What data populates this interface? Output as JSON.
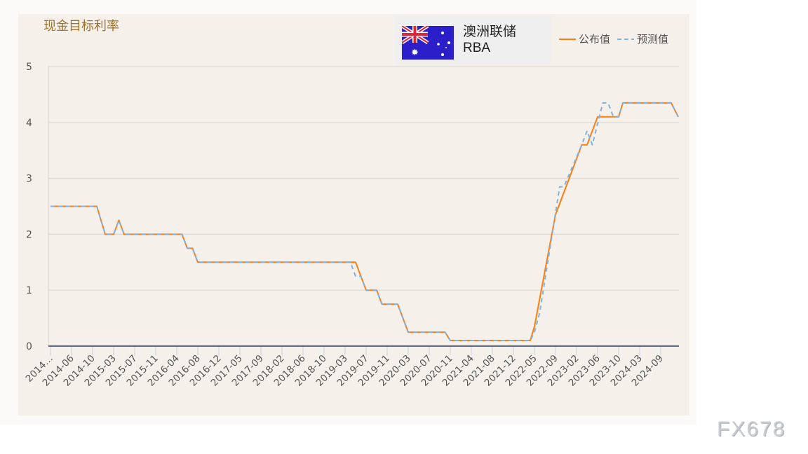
{
  "header": {
    "title": "现金目标利率",
    "bank_name": "澳洲联储",
    "bank_code": "RBA",
    "flag_icon": "australia-flag"
  },
  "watermark": "FX678",
  "colors": {
    "actual": "#ff7f0e",
    "forecast": "#7fb2e5",
    "title": "#a0742a",
    "axis": "#2b3a67"
  },
  "chart_data": {
    "type": "line",
    "title": "现金目标利率",
    "xlabel": "",
    "ylabel": "",
    "ylim": [
      0,
      5
    ],
    "yticks": [
      "0",
      "1",
      "2",
      "3",
      "4",
      "5"
    ],
    "grid": true,
    "legend": "top-right",
    "xticks": [
      "2014-02",
      "2014-06",
      "2014-10",
      "2015-03",
      "2015-07",
      "2015-11",
      "2016-04",
      "2016-08",
      "2016-12",
      "2017-05",
      "2017-09",
      "2018-02",
      "2018-06",
      "2018-10",
      "2019-03",
      "2019-07",
      "2019-11",
      "2020-03",
      "2020-07",
      "2020-11",
      "2021-04",
      "2021-08",
      "2021-12",
      "2022-05",
      "2022-09",
      "2023-02",
      "2023-06",
      "2023-10",
      "2024-03",
      "2024-09"
    ],
    "xtick_labels": [
      "2014…",
      "2014-06",
      "2014-10",
      "2015-03",
      "2015-07",
      "2015-11",
      "2016-04",
      "2016-08",
      "2016-12",
      "2017-05",
      "2017-09",
      "2018-02",
      "2018-06",
      "2018-10",
      "2019-03",
      "2019-07",
      "2019-11",
      "2020-03",
      "2020-07",
      "2020-11",
      "2021-04",
      "2021-08",
      "2021-12",
      "2022-05",
      "2022-09",
      "2023-02",
      "2023-06",
      "2023-10",
      "2024-03",
      "2024-09"
    ],
    "series": [
      {
        "name": "公布值",
        "style": "solid",
        "points": [
          [
            "2014-02",
            2.5
          ],
          [
            "2014-11",
            2.5
          ],
          [
            "2015-01",
            2.0
          ],
          [
            "2015-03",
            2.0
          ],
          [
            "2015-04",
            2.25
          ],
          [
            "2015-05",
            2.0
          ],
          [
            "2016-05",
            2.0
          ],
          [
            "2016-06",
            1.75
          ],
          [
            "2016-07",
            1.75
          ],
          [
            "2016-08",
            1.5
          ],
          [
            "2019-05",
            1.5
          ],
          [
            "2019-07",
            1.0
          ],
          [
            "2019-09",
            1.0
          ],
          [
            "2019-10",
            0.75
          ],
          [
            "2020-01",
            0.75
          ],
          [
            "2020-03",
            0.25
          ],
          [
            "2020-10",
            0.25
          ],
          [
            "2020-11",
            0.1
          ],
          [
            "2022-04",
            0.1
          ],
          [
            "2022-05",
            0.35
          ],
          [
            "2022-09",
            2.35
          ],
          [
            "2023-03",
            3.6
          ],
          [
            "2023-04",
            3.6
          ],
          [
            "2023-06",
            4.1
          ],
          [
            "2023-10",
            4.1
          ],
          [
            "2023-11",
            4.35
          ],
          [
            "2024-12",
            4.35
          ],
          [
            "2025-02",
            4.1
          ]
        ]
      },
      {
        "name": "预测值",
        "style": "dashed",
        "points": [
          [
            "2014-02",
            2.5
          ],
          [
            "2014-11",
            2.5
          ],
          [
            "2015-01",
            2.0
          ],
          [
            "2015-03",
            2.0
          ],
          [
            "2015-04",
            2.25
          ],
          [
            "2015-05",
            2.0
          ],
          [
            "2016-05",
            2.0
          ],
          [
            "2016-06",
            1.75
          ],
          [
            "2016-07",
            1.75
          ],
          [
            "2016-08",
            1.5
          ],
          [
            "2019-04",
            1.5
          ],
          [
            "2019-05",
            1.25
          ],
          [
            "2019-06",
            1.25
          ],
          [
            "2019-07",
            1.0
          ],
          [
            "2019-09",
            1.0
          ],
          [
            "2019-10",
            0.75
          ],
          [
            "2020-01",
            0.75
          ],
          [
            "2020-03",
            0.25
          ],
          [
            "2020-10",
            0.25
          ],
          [
            "2020-11",
            0.1
          ],
          [
            "2022-04",
            0.1
          ],
          [
            "2022-05",
            0.25
          ],
          [
            "2022-06",
            0.6
          ],
          [
            "2022-10",
            2.85
          ],
          [
            "2022-11",
            2.85
          ],
          [
            "2023-03",
            3.6
          ],
          [
            "2023-04",
            3.85
          ],
          [
            "2023-05",
            3.6
          ],
          [
            "2023-07",
            4.35
          ],
          [
            "2023-08",
            4.35
          ],
          [
            "2023-09",
            4.1
          ],
          [
            "2023-10",
            4.1
          ],
          [
            "2023-11",
            4.35
          ],
          [
            "2024-12",
            4.35
          ],
          [
            "2025-02",
            4.1
          ]
        ]
      }
    ]
  }
}
